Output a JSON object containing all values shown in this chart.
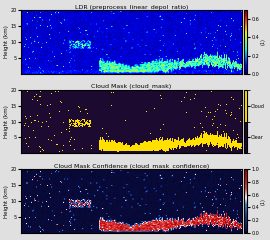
{
  "title1": "LDR (preprocess_linear_depol_ratio)",
  "title2": "Cloud Mask (cloud_mask)",
  "title3": "Cloud Mask Confidence (cloud_mask_confidence)",
  "ylabel": "Height (km)",
  "ylim": [
    0,
    20
  ],
  "yticks": [
    5,
    10,
    15,
    20
  ],
  "ldr_vmin": 0.0,
  "ldr_vmax": 0.7,
  "ldr_ticks": [
    0.0,
    0.2,
    0.4,
    0.6
  ],
  "conf_vmin": 0.0,
  "conf_vmax": 1.0,
  "conf_ticks": [
    0.0,
    0.2,
    0.4,
    0.6,
    0.8,
    1.0
  ],
  "cbar_label": "(1)",
  "seed": 42,
  "nx": 220,
  "ny": 80
}
